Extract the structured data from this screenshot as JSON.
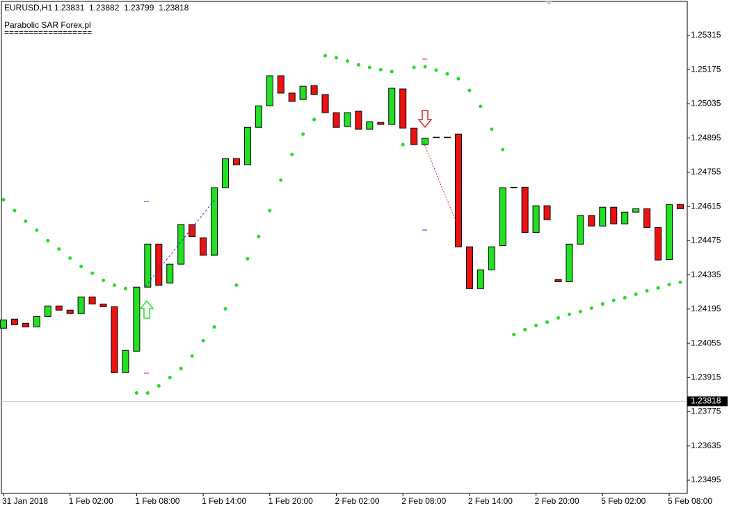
{
  "chart_data": {
    "type": "candlestick",
    "title": "EURUSD,H1",
    "last_bar": [
      1.23831,
      1.23882,
      1.23799,
      1.23818
    ],
    "indicator_label": "Parabolic SAR Forex.pl",
    "indicator_separator": "==================",
    "categories": [
      "31 Jan 2018",
      null,
      null,
      null,
      null,
      null,
      "1 Feb 02:00",
      null,
      null,
      null,
      null,
      null,
      "1 Feb 08:00",
      null,
      null,
      null,
      null,
      null,
      "1 Feb 14:00",
      null,
      null,
      null,
      null,
      null,
      "1 Feb 20:00",
      null,
      null,
      null,
      null,
      null,
      "2 Feb 02:00",
      null,
      null,
      null,
      null,
      null,
      "2 Feb 08:00",
      null,
      null,
      null,
      null,
      null,
      "2 Feb 14:00",
      null,
      null,
      null,
      null,
      null,
      "2 Feb 20:00",
      null,
      null,
      null,
      null,
      null,
      "5 Feb 02:00",
      null,
      null,
      null,
      null,
      null,
      "5 Feb 08:00",
      null
    ],
    "open": [
      1.24117,
      1.24154,
      1.24137,
      1.24122,
      1.24165,
      1.24208,
      1.24191,
      1.24177,
      1.24245,
      1.24216,
      1.24205,
      1.23935,
      1.24023,
      1.24285,
      1.24461,
      1.24302,
      1.24379,
      1.24541,
      1.24487,
      1.24416,
      1.24692,
      1.24811,
      1.24786,
      1.24939,
      1.25027,
      1.2515,
      1.25079,
      1.25053,
      1.2511,
      1.25073,
      1.24999,
      1.24942,
      1.25005,
      1.24931,
      1.24959,
      1.24951,
      1.25096,
      1.24936,
      1.24868,
      1.24899,
      1.24897,
      1.24911,
      1.2445,
      1.24279,
      1.24356,
      1.24455,
      1.24692,
      1.24694,
      1.24509,
      1.24618,
      1.24316,
      1.24307,
      1.24461,
      1.24578,
      1.24535,
      1.24612,
      1.24544,
      1.24592,
      1.24606,
      1.24529,
      1.24398,
      1.24623
    ],
    "high": [
      1.24236,
      1.24165,
      1.24157,
      1.24222,
      1.2425,
      1.24279,
      1.24265,
      1.24265,
      1.2427,
      1.24265,
      1.24236,
      1.24051,
      1.24384,
      1.24507,
      1.24478,
      1.24407,
      1.24572,
      1.2462,
      1.24564,
      1.24734,
      1.24891,
      1.24828,
      1.24948,
      1.25033,
      1.25232,
      1.25193,
      1.25164,
      1.25147,
      1.25147,
      1.25153,
      1.25062,
      1.25019,
      1.2501,
      1.24976,
      1.25033,
      1.25164,
      1.25184,
      1.24948,
      1.24919,
      1.24996,
      1.24919,
      1.24971,
      1.24612,
      1.24393,
      1.24555,
      1.24777,
      1.24905,
      1.24714,
      1.24649,
      1.24635,
      1.2445,
      1.24478,
      1.24586,
      1.24583,
      1.24635,
      1.24663,
      1.24606,
      1.24635,
      1.2462,
      1.24626,
      1.24635,
      1.24749
    ],
    "low": [
      1.24023,
      1.24122,
      1.24046,
      1.24122,
      1.24157,
      1.24051,
      1.24157,
      1.24137,
      1.24208,
      1.24199,
      1.23929,
      1.23852,
      1.24017,
      1.2427,
      1.24287,
      1.24245,
      1.24336,
      1.24484,
      1.24407,
      1.24316,
      1.24686,
      1.24754,
      1.24777,
      1.2484,
      1.25019,
      1.25056,
      1.25039,
      1.25047,
      1.24982,
      1.24988,
      1.24891,
      1.24914,
      1.24914,
      1.24919,
      1.24868,
      1.24942,
      1.24925,
      1.24805,
      1.24763,
      1.24862,
      1.24862,
      1.24379,
      1.2427,
      1.24088,
      1.2435,
      1.2445,
      1.24677,
      1.24492,
      1.24492,
      1.24555,
      1.24285,
      1.24242,
      1.24401,
      1.2445,
      1.24441,
      1.24535,
      1.24521,
      1.24555,
      1.24478,
      1.2439,
      1.24384,
      1.24555
    ],
    "close": [
      1.24151,
      1.24131,
      1.24122,
      1.24165,
      1.24208,
      1.24191,
      1.24177,
      1.24245,
      1.24216,
      1.24205,
      1.23935,
      1.24026,
      1.24285,
      1.24461,
      1.24293,
      1.24379,
      1.24541,
      1.24492,
      1.24416,
      1.24692,
      1.24811,
      1.24786,
      1.24939,
      1.25027,
      1.2515,
      1.25079,
      1.25045,
      1.25107,
      1.25073,
      1.24999,
      1.24939,
      1.24999,
      1.24931,
      1.24962,
      1.24951,
      1.25099,
      1.24936,
      1.24868,
      1.24894,
      1.24897,
      1.24899,
      1.2445,
      1.24279,
      1.24356,
      1.2445,
      1.24692,
      1.24694,
      1.24509,
      1.24618,
      1.24561,
      1.24307,
      1.24461,
      1.24578,
      1.24535,
      1.24612,
      1.24544,
      1.24592,
      1.24606,
      1.24529,
      1.24396,
      1.24623,
      1.24606
    ],
    "bull_color": "#22e022",
    "bear_color": "#ee1111",
    "sar": {
      "color": "#22dd22",
      "values": [
        1.24643,
        1.24598,
        1.24555,
        1.24518,
        1.24475,
        1.24441,
        1.24404,
        1.2437,
        1.24342,
        1.24313,
        1.24293,
        1.24279,
        1.23852,
        1.23852,
        1.23881,
        1.23915,
        1.23952,
        1.24003,
        1.24066,
        1.24122,
        1.24196,
        1.24293,
        1.24401,
        1.24492,
        1.24598,
        1.24723,
        1.24828,
        1.24911,
        1.24971,
        1.25232,
        1.25224,
        1.2521,
        1.25195,
        1.25184,
        1.25175,
        1.25167,
        1.24868,
        1.25184,
        1.25187,
        1.25173,
        1.25158,
        1.25138,
        1.2509,
        1.25025,
        1.24931,
        1.24848,
        1.24091,
        1.24111,
        1.24128,
        1.24142,
        1.24159,
        1.24174,
        1.24185,
        1.24199,
        1.24216,
        1.24231,
        1.24242,
        1.24256,
        1.2427,
        1.24282,
        1.24296,
        1.24305
      ]
    },
    "current_price": 1.23818,
    "ylim": [
      1.23441,
      1.2546
    ],
    "yticks": [
      1.25315,
      1.25175,
      1.25035,
      1.24895,
      1.24755,
      1.24615,
      1.24475,
      1.24335,
      1.24195,
      1.24055,
      1.23915,
      1.23775,
      1.23635,
      1.23495
    ]
  }
}
